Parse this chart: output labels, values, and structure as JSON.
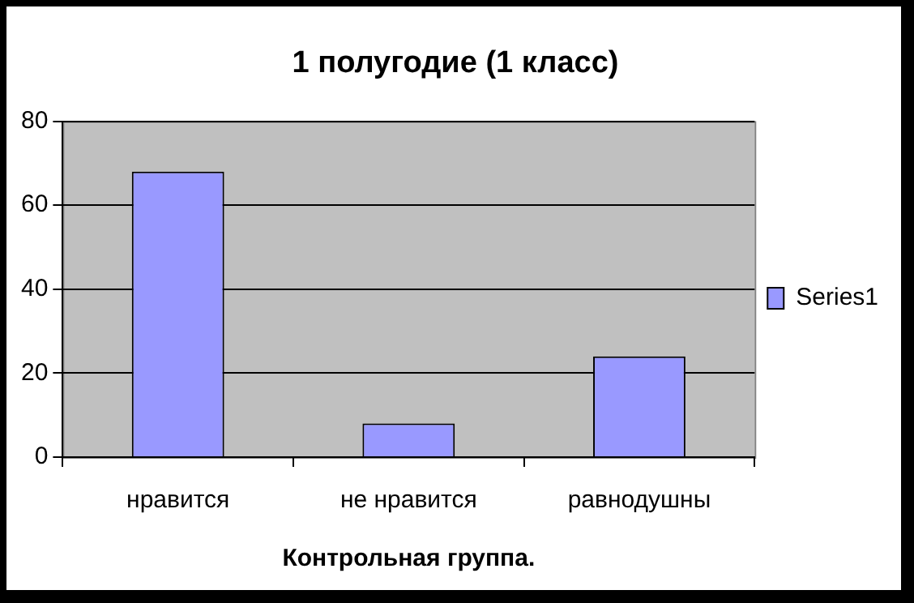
{
  "chart_data": {
    "type": "bar",
    "title": "1 полугодие (1 класс)",
    "xlabel": "Контрольная группа.",
    "categories": [
      "нравится",
      "не нравится",
      "равнодушны"
    ],
    "series": [
      {
        "name": "Series1",
        "color": "#9999ff",
        "values": [
          68,
          8,
          24
        ]
      }
    ],
    "ylim": [
      0,
      80
    ],
    "yticks": [
      0,
      20,
      40,
      60,
      80
    ],
    "grid": "y",
    "legend": "right"
  }
}
